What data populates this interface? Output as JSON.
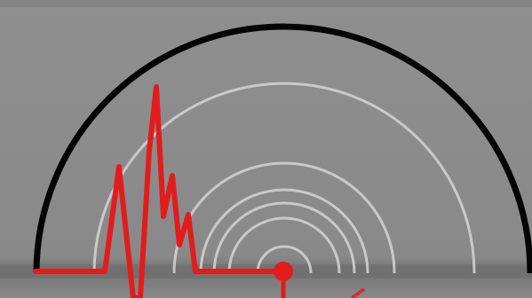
{
  "scene": {
    "background_color": "#8d8d8d",
    "dome_color": "#050505",
    "ripple_color": "#d0d0d0",
    "wave_color": "#e21c1c",
    "band_color": "#6f6f6f",
    "icon": "seismograph-icon"
  }
}
